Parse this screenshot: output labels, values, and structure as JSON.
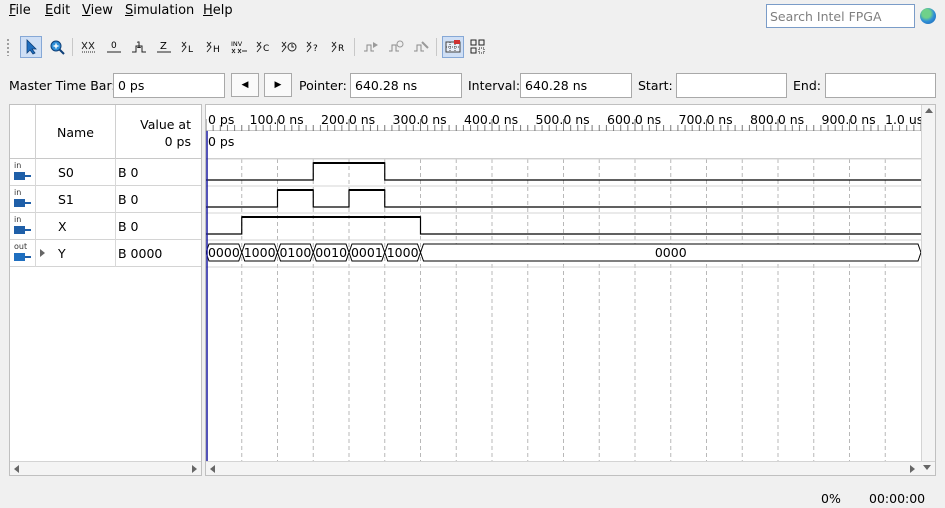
{
  "menu": {
    "file": {
      "u": "F",
      "rest": "ile"
    },
    "edit": {
      "u": "E",
      "rest": "dit"
    },
    "view": {
      "u": "V",
      "rest": "iew"
    },
    "simulation": {
      "u": "S",
      "rest": "imulation"
    },
    "help": {
      "u": "H",
      "rest": "elp"
    }
  },
  "search": {
    "placeholder": "Search Intel FPGA"
  },
  "timebar": {
    "master_label": "Master Time Bar:",
    "master_value": "0 ps",
    "pointer_label": "Pointer:",
    "pointer_value": "640.28 ns",
    "interval_label": "Interval:",
    "interval_value": "640.28 ns",
    "start_label": "Start:",
    "start_value": "",
    "end_label": "End:",
    "end_value": ""
  },
  "table": {
    "name_header": "Name",
    "value_header_line1": "Value at",
    "value_header_line2": "0 ps"
  },
  "signals": [
    {
      "dir": "in",
      "name": "S0",
      "value": "B 0",
      "expandable": false
    },
    {
      "dir": "in",
      "name": "S1",
      "value": "B 0",
      "expandable": false
    },
    {
      "dir": "in",
      "name": "X",
      "value": "B 0",
      "expandable": false
    },
    {
      "dir": "out",
      "name": "Y",
      "value": "B 0000",
      "expandable": true
    }
  ],
  "ruler": {
    "ticks": [
      "0 ps",
      "100.0 ns",
      "200.0 ns",
      "300.0 ns",
      "400.0 ns",
      "500.0 ns",
      "600.0 ns",
      "700.0 ns",
      "800.0 ns",
      "900.0 ns",
      "1.0 us"
    ],
    "time_label": "0 ps",
    "end_ns": 1000
  },
  "waveforms": {
    "S0": [
      [
        0,
        0
      ],
      [
        150,
        1
      ],
      [
        250,
        0
      ],
      [
        1000,
        0
      ]
    ],
    "S1": [
      [
        0,
        0
      ],
      [
        100,
        1
      ],
      [
        150,
        0
      ],
      [
        200,
        1
      ],
      [
        250,
        0
      ],
      [
        1000,
        0
      ]
    ],
    "X": [
      [
        0,
        0
      ],
      [
        50,
        1
      ],
      [
        300,
        0
      ],
      [
        1000,
        0
      ]
    ],
    "Y": [
      {
        "start": 0,
        "end": 50,
        "label": "0000"
      },
      {
        "start": 50,
        "end": 100,
        "label": "1000"
      },
      {
        "start": 100,
        "end": 150,
        "label": "0100"
      },
      {
        "start": 150,
        "end": 200,
        "label": "0010"
      },
      {
        "start": 200,
        "end": 250,
        "label": "0001"
      },
      {
        "start": 250,
        "end": 300,
        "label": "1000"
      },
      {
        "start": 300,
        "end": 1000,
        "label": "0000"
      }
    ]
  },
  "status": {
    "progress": "0%",
    "elapsed": "00:00:00"
  },
  "colors": {
    "accent": "#1f5fa8",
    "cursor": "#1a1aa0"
  }
}
